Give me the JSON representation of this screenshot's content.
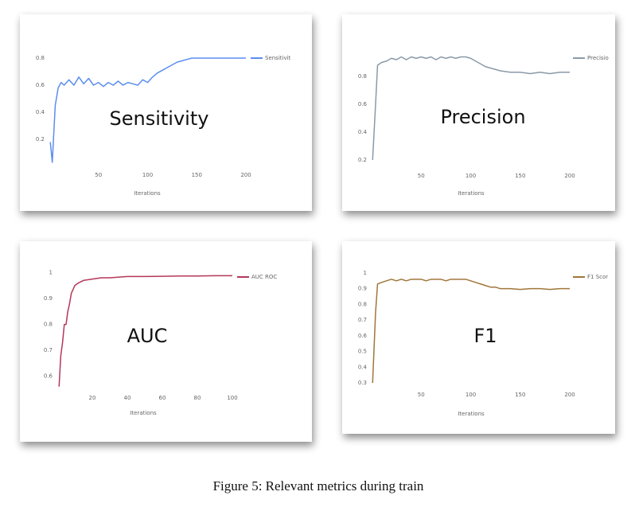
{
  "caption": "Figure 5: Relevant metrics during train",
  "chart_data": [
    {
      "type": "line",
      "annotation": "Sensitivity",
      "xlabel": "Iterations",
      "x": [
        1,
        3,
        6,
        9,
        12,
        15,
        20,
        25,
        30,
        35,
        40,
        45,
        50,
        55,
        60,
        65,
        70,
        75,
        80,
        85,
        90,
        95,
        100,
        105,
        110,
        115,
        120,
        125,
        130,
        135,
        140,
        145,
        150,
        160,
        170,
        180,
        190,
        200
      ],
      "series": [
        {
          "name": "Sensitivit",
          "color": "#5b8def",
          "values": [
            0.18,
            0.03,
            0.45,
            0.58,
            0.62,
            0.6,
            0.64,
            0.6,
            0.66,
            0.61,
            0.65,
            0.6,
            0.62,
            0.59,
            0.62,
            0.6,
            0.63,
            0.6,
            0.62,
            0.61,
            0.6,
            0.64,
            0.62,
            0.66,
            0.69,
            0.71,
            0.73,
            0.75,
            0.77,
            0.78,
            0.79,
            0.8,
            0.8,
            0.8,
            0.8,
            0.8,
            0.8,
            0.8
          ]
        }
      ],
      "xlim": [
        0,
        200
      ],
      "xticks": [
        50,
        100,
        150,
        200
      ],
      "ylim": [
        0,
        0.85
      ],
      "yticks": [
        0.2,
        0.4,
        0.6,
        0.8
      ],
      "grid": false,
      "legend": "top-right"
    },
    {
      "type": "line",
      "annotation": "Precision",
      "xlabel": "Iterations",
      "x": [
        1,
        4,
        6,
        10,
        15,
        20,
        25,
        30,
        35,
        40,
        45,
        50,
        55,
        60,
        65,
        70,
        75,
        80,
        85,
        90,
        95,
        100,
        105,
        110,
        115,
        120,
        125,
        130,
        140,
        150,
        160,
        170,
        180,
        190,
        200
      ],
      "series": [
        {
          "name": "Precisio",
          "color": "#8a9aa8",
          "values": [
            0.2,
            0.6,
            0.88,
            0.9,
            0.91,
            0.93,
            0.92,
            0.94,
            0.92,
            0.94,
            0.93,
            0.94,
            0.93,
            0.94,
            0.92,
            0.94,
            0.93,
            0.94,
            0.93,
            0.94,
            0.94,
            0.93,
            0.91,
            0.89,
            0.87,
            0.86,
            0.85,
            0.84,
            0.83,
            0.83,
            0.82,
            0.83,
            0.82,
            0.83,
            0.83
          ]
        }
      ],
      "xlim": [
        0,
        200
      ],
      "xticks": [
        50,
        100,
        150,
        200
      ],
      "ylim": [
        0.15,
        1.0
      ],
      "yticks": [
        0.2,
        0.4,
        0.6,
        0.8
      ],
      "grid": false,
      "legend": "top-right"
    },
    {
      "type": "line",
      "annotation": "AUC",
      "xlabel": "Iterations",
      "x": [
        1,
        2,
        3,
        4,
        5,
        6,
        7,
        8,
        10,
        12,
        15,
        20,
        25,
        30,
        40,
        50,
        60,
        70,
        80,
        90,
        100
      ],
      "series": [
        {
          "name": "AUC ROC",
          "color": "#b5375a",
          "values": [
            0.56,
            0.68,
            0.73,
            0.8,
            0.8,
            0.85,
            0.88,
            0.92,
            0.95,
            0.96,
            0.97,
            0.975,
            0.98,
            0.98,
            0.985,
            0.985,
            0.986,
            0.987,
            0.987,
            0.988,
            0.988
          ]
        }
      ],
      "xlim": [
        0,
        100
      ],
      "xticks": [
        20,
        40,
        60,
        80,
        100
      ],
      "ylim": [
        0.55,
        1.02
      ],
      "yticks": [
        0.6,
        0.7,
        0.8,
        0.9,
        1
      ],
      "grid": false,
      "legend": "top-right"
    },
    {
      "type": "line",
      "annotation": "F1",
      "xlabel": "Iterations",
      "x": [
        1,
        4,
        6,
        10,
        15,
        20,
        25,
        30,
        35,
        40,
        45,
        50,
        55,
        60,
        65,
        70,
        75,
        80,
        85,
        90,
        95,
        100,
        105,
        110,
        115,
        120,
        125,
        130,
        140,
        150,
        160,
        170,
        180,
        190,
        200
      ],
      "series": [
        {
          "name": "F1 Scor",
          "color": "#a0763a",
          "values": [
            0.3,
            0.75,
            0.93,
            0.94,
            0.95,
            0.96,
            0.95,
            0.96,
            0.95,
            0.96,
            0.96,
            0.96,
            0.95,
            0.96,
            0.96,
            0.96,
            0.95,
            0.96,
            0.96,
            0.96,
            0.96,
            0.95,
            0.94,
            0.93,
            0.92,
            0.91,
            0.91,
            0.9,
            0.9,
            0.895,
            0.9,
            0.9,
            0.895,
            0.9,
            0.9
          ]
        }
      ],
      "xlim": [
        0,
        200
      ],
      "xticks": [
        50,
        100,
        150,
        200
      ],
      "ylim": [
        0.28,
        1.02
      ],
      "yticks": [
        0.3,
        0.4,
        0.5,
        0.6,
        0.7,
        0.8,
        0.9,
        1
      ],
      "grid": false,
      "legend": "top-right"
    }
  ]
}
